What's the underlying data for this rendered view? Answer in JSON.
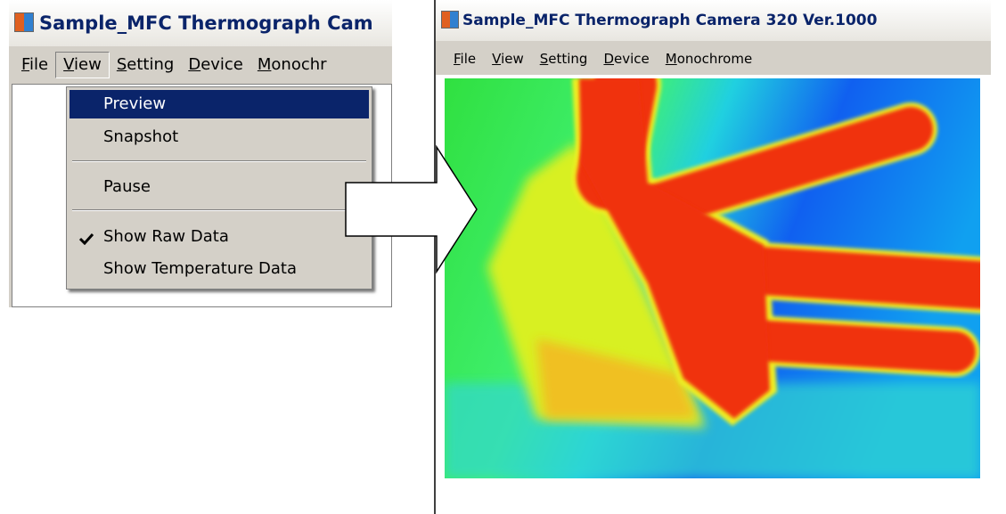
{
  "left_window": {
    "title": "Sample_MFC Thermograph Cam",
    "menu": [
      "File",
      "View",
      "Setting",
      "Device",
      "Monochr"
    ],
    "dropdown": {
      "items": [
        "Preview",
        "Snapshot",
        "Pause",
        "Show Raw Data",
        "Show Temperature Data"
      ]
    }
  },
  "right_window": {
    "title": "Sample_MFC Thermograph Camera 320 Ver.1000",
    "menu": [
      "File",
      "View",
      "Setting",
      "Device",
      "Monochrome"
    ]
  }
}
